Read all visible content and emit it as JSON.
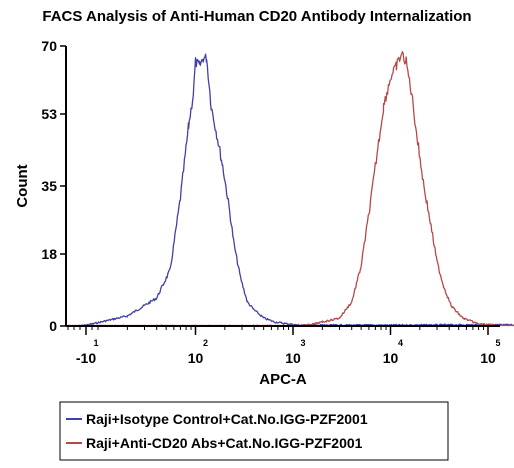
{
  "chart_data": {
    "type": "line",
    "title": "FACS Analysis of Anti-Human CD20 Antibody Internalization",
    "xlabel": "APC-A",
    "ylabel": "Count",
    "x_scale": "biexponential",
    "xlim": [
      -40,
      500000
    ],
    "ylim": [
      0,
      70
    ],
    "y_ticks": [
      0,
      18,
      35,
      53,
      70
    ],
    "x_ticks": [
      {
        "value": -10,
        "base": "-10",
        "exp": "1"
      },
      {
        "value": 100,
        "base": "10",
        "exp": "2"
      },
      {
        "value": 1000,
        "base": "10",
        "exp": "3"
      },
      {
        "value": 10000,
        "base": "10",
        "exp": "4"
      },
      {
        "value": 100000,
        "base": "10",
        "exp": "5"
      }
    ],
    "legend_position": "bottom",
    "series": [
      {
        "name": "Raji+Isotype Control+Cat.No.IGG-PZF2001",
        "color": "#4040a8",
        "points": [
          [
            -20,
            0
          ],
          [
            0,
            0.5
          ],
          [
            20,
            2.5
          ],
          [
            40,
            7
          ],
          [
            55,
            14
          ],
          [
            70,
            32
          ],
          [
            85,
            50
          ],
          [
            95,
            58
          ],
          [
            100,
            66
          ],
          [
            110,
            65
          ],
          [
            120,
            67
          ],
          [
            130,
            67
          ],
          [
            145,
            55
          ],
          [
            165,
            48
          ],
          [
            190,
            40
          ],
          [
            220,
            30
          ],
          [
            250,
            20
          ],
          [
            290,
            12
          ],
          [
            340,
            6
          ],
          [
            400,
            4
          ],
          [
            500,
            2
          ],
          [
            650,
            1
          ],
          [
            900,
            0.5
          ],
          [
            1200,
            0.2
          ],
          [
            3000,
            0.2
          ],
          [
            10000,
            0.2
          ],
          [
            100000,
            0.3
          ],
          [
            400000,
            0.2
          ]
        ]
      },
      {
        "name": "Raji+Anti-CD20 Abs+Cat.No.IGG-PZF2001",
        "color": "#b84848",
        "points": [
          [
            -40,
            0
          ],
          [
            1000,
            0
          ],
          [
            1500,
            0.3
          ],
          [
            2000,
            1
          ],
          [
            3000,
            2
          ],
          [
            4000,
            6
          ],
          [
            5000,
            15
          ],
          [
            6000,
            28
          ],
          [
            7000,
            40
          ],
          [
            8500,
            55
          ],
          [
            10000,
            62
          ],
          [
            11500,
            65
          ],
          [
            13000,
            68
          ],
          [
            14500,
            66
          ],
          [
            16500,
            58
          ],
          [
            19000,
            46
          ],
          [
            22000,
            35
          ],
          [
            26000,
            25
          ],
          [
            30000,
            16
          ],
          [
            35000,
            10
          ],
          [
            42000,
            5
          ],
          [
            55000,
            2
          ],
          [
            80000,
            0.5
          ],
          [
            150000,
            0
          ],
          [
            400000,
            0
          ]
        ]
      }
    ]
  }
}
